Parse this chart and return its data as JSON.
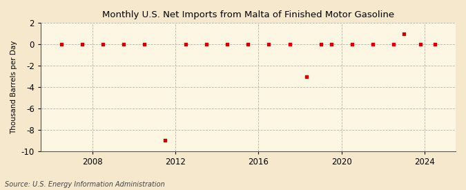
{
  "title": "Monthly U.S. Net Imports from Malta of Finished Motor Gasoline",
  "ylabel": "Thousand Barrels per Day",
  "source": "Source: U.S. Energy Information Administration",
  "background_color": "#f5e8cc",
  "plot_bg_color": "#fdf6e3",
  "point_color": "#cc0000",
  "grid_color": "#aaaaaa",
  "spine_color": "#555555",
  "ylim": [
    -10,
    2
  ],
  "yticks": [
    -10,
    -8,
    -6,
    -4,
    -2,
    0,
    2
  ],
  "xlim_start": 2005.5,
  "xlim_end": 2025.5,
  "xticks": [
    2008,
    2012,
    2016,
    2020,
    2024
  ],
  "data_points": [
    [
      2006.5,
      0
    ],
    [
      2007.5,
      0
    ],
    [
      2008.5,
      0
    ],
    [
      2009.5,
      0
    ],
    [
      2010.5,
      0
    ],
    [
      2011.5,
      -9.0
    ],
    [
      2012.5,
      0
    ],
    [
      2013.5,
      0
    ],
    [
      2014.5,
      0
    ],
    [
      2015.5,
      0
    ],
    [
      2016.5,
      0
    ],
    [
      2017.5,
      0
    ],
    [
      2018.3,
      -3.0
    ],
    [
      2019.0,
      0
    ],
    [
      2019.5,
      0
    ],
    [
      2020.5,
      0
    ],
    [
      2021.5,
      0
    ],
    [
      2022.5,
      0
    ],
    [
      2023.0,
      1.0
    ],
    [
      2023.8,
      0
    ],
    [
      2024.5,
      0
    ]
  ]
}
